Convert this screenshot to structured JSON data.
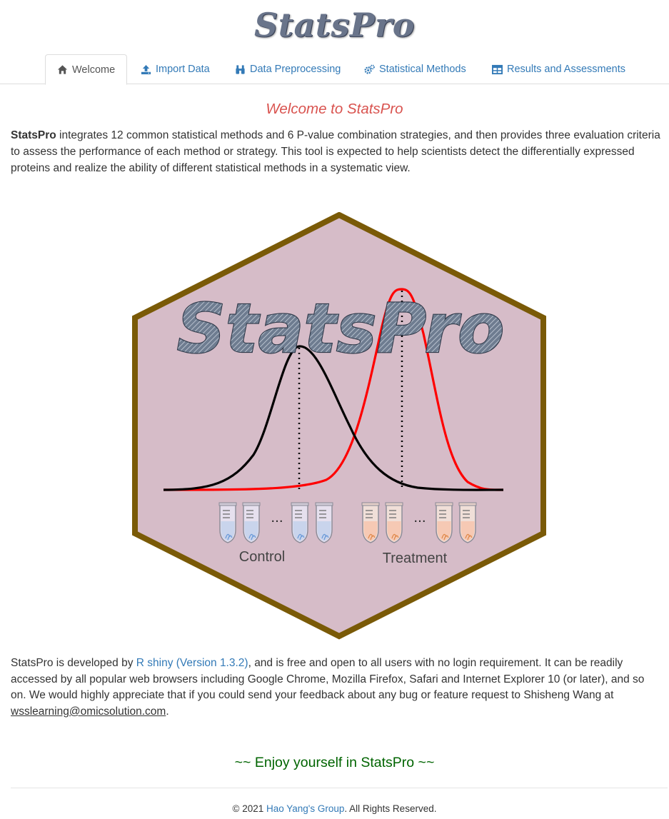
{
  "app": {
    "title": "StatsPro"
  },
  "tabs": [
    {
      "label": "Welcome",
      "icon": "home-icon",
      "active": true
    },
    {
      "label": "Import Data",
      "icon": "upload-icon",
      "active": false
    },
    {
      "label": "Data Preprocessing",
      "icon": "binoculars-icon",
      "active": false
    },
    {
      "label": "Statistical Methods",
      "icon": "cogs-icon",
      "active": false
    },
    {
      "label": "Results and Assessments",
      "icon": "table-icon",
      "active": false
    }
  ],
  "welcome": {
    "heading": "Welcome to StatsPro",
    "intro_strong": "StatsPro",
    "intro_text": " integrates 12 common statistical methods and 6 P-value combination strategies, and then provides three evaluation criteria to assess the performance of each method or strategy. This tool is expected to help scientists detect the differentially expressed proteins and realize the ability of different statistical methods in a systematic view."
  },
  "logo": {
    "wordmark": "StatsPro",
    "dots": "...",
    "control_label": "Control",
    "treatment_label": "Treatment",
    "hex_fill": "#d6bcc8",
    "hex_border": "#7a5a07",
    "control_curve_color": "#000000",
    "treatment_curve_color": "#ff0000"
  },
  "about": {
    "pre": "StatsPro is developed by ",
    "link": "R shiny (Version 1.3.2)",
    "mid": ", and is free and open to all users with no login requirement. It can be readily accessed by all popular web browsers including Google Chrome, Mozilla Firefox, Safari and Internet Explorer 10 (or later), and so on. We would highly appreciate that if you could send your feedback about any bug or feature request to Shisheng Wang at ",
    "email": "wsslearning@omicsolution.com",
    "post": "."
  },
  "enjoy": "~~ Enjoy yourself in StatsPro ~~",
  "footer": {
    "pre": "© 2021 ",
    "link": "Hao Yang's Group",
    "post": ". All Rights Reserved."
  }
}
